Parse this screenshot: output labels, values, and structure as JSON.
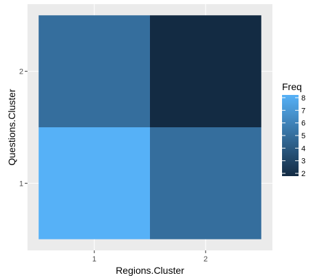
{
  "chart_data": {
    "type": "heatmap",
    "xlabel": "Regions.Cluster",
    "ylabel": "Questions.Cluster",
    "x_categories": [
      "1",
      "2"
    ],
    "y_categories": [
      "1",
      "2"
    ],
    "cells": [
      {
        "x": "1",
        "y": "1",
        "value": 8
      },
      {
        "x": "2",
        "y": "1",
        "value": 5
      },
      {
        "x": "1",
        "y": "2",
        "value": 5
      },
      {
        "x": "2",
        "y": "2",
        "value": 2
      }
    ],
    "legend": {
      "title": "Freq",
      "position": "right",
      "min": 2,
      "max": 8,
      "ticks": [
        "2",
        "3",
        "4",
        "5",
        "6",
        "7",
        "8"
      ],
      "low_color": "#132B43",
      "high_color": "#56B1F7"
    },
    "panel_background": "#EBEBEB",
    "grid_color": "#FFFFFF",
    "grid": true
  }
}
